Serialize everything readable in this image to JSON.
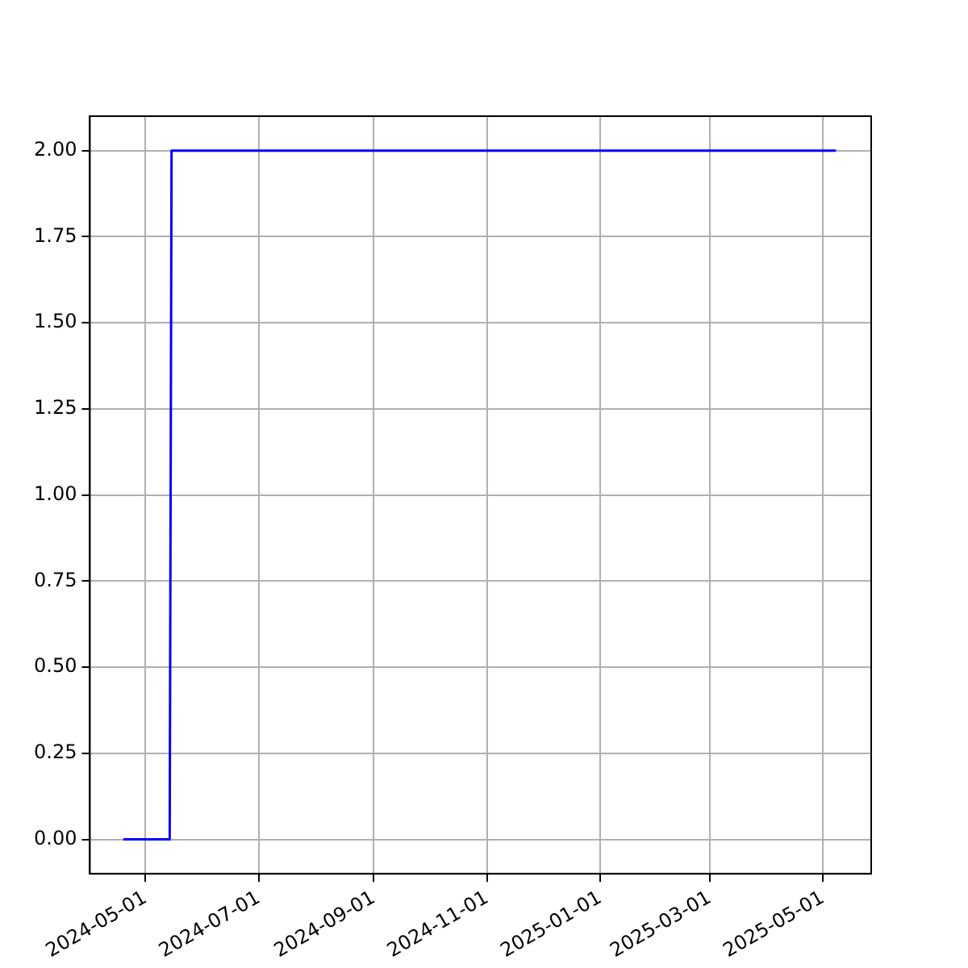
{
  "chart_data": {
    "type": "line",
    "x": [
      "2024-04-19",
      "2024-05-14",
      "2024-05-15",
      "2025-05-08"
    ],
    "series": [
      {
        "color": "#0000ff",
        "values": [
          0,
          0,
          2,
          2
        ]
      }
    ],
    "xlim": [
      "2024-04-01",
      "2025-05-27"
    ],
    "xticks": [
      "2024-05-01",
      "2024-07-01",
      "2024-09-01",
      "2024-11-01",
      "2025-01-01",
      "2025-03-01",
      "2025-05-01"
    ],
    "ylim": [
      -0.1,
      2.1
    ],
    "yticks": [
      {
        "value": 0,
        "label": "0.00"
      },
      {
        "value": 0.25,
        "label": "0.25"
      },
      {
        "value": 0.5,
        "label": "0.50"
      },
      {
        "value": 0.75,
        "label": "0.75"
      },
      {
        "value": 1,
        "label": "1.00"
      },
      {
        "value": 1.25,
        "label": "1.25"
      },
      {
        "value": 1.5,
        "label": "1.50"
      },
      {
        "value": 1.75,
        "label": "1.75"
      },
      {
        "value": 2,
        "label": "2.00"
      }
    ],
    "grid": true,
    "marker": "none",
    "line_style": "solid"
  }
}
